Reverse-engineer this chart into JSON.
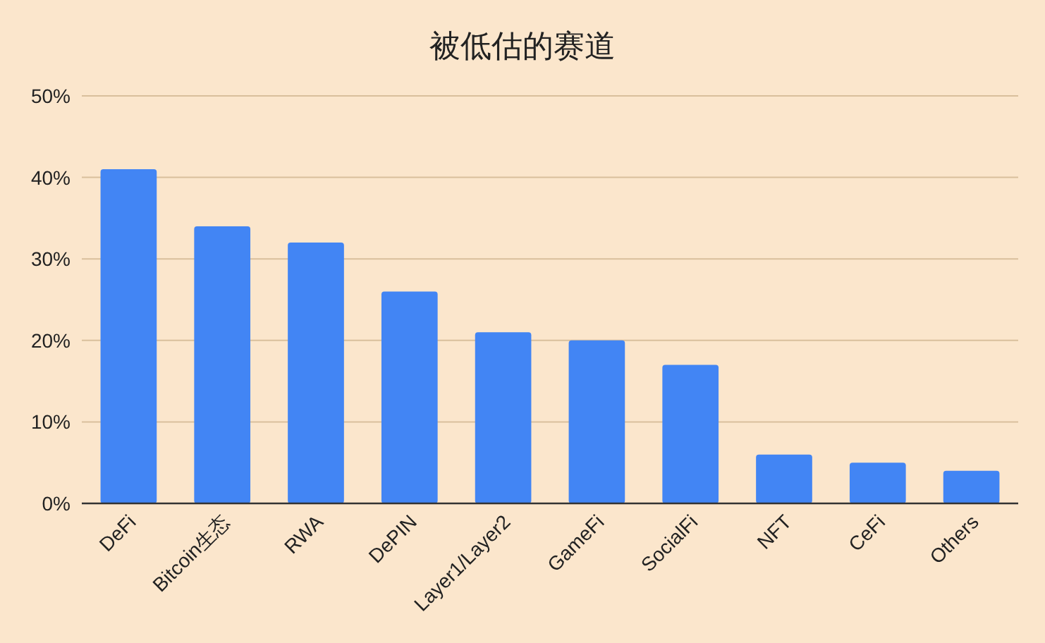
{
  "chart_data": {
    "type": "bar",
    "title": "被低估的赛道",
    "categories": [
      "DeFi",
      "Bitcoin生态",
      "RWA",
      "DePIN",
      "Layer1/Layer2",
      "GameFi",
      "SocialFi",
      "NFT",
      "CeFi",
      "Others"
    ],
    "values": [
      41,
      34,
      32,
      26,
      21,
      20,
      17,
      6,
      5,
      4
    ],
    "color": "#4285f4",
    "ylim": [
      0,
      50
    ],
    "yticks": [
      {
        "value": 0,
        "label": "0%"
      },
      {
        "value": 10,
        "label": "10%"
      },
      {
        "value": 20,
        "label": "20%"
      },
      {
        "value": 30,
        "label": "30%"
      },
      {
        "value": 40,
        "label": "40%"
      },
      {
        "value": 50,
        "label": "50%"
      }
    ],
    "grid": "y"
  }
}
